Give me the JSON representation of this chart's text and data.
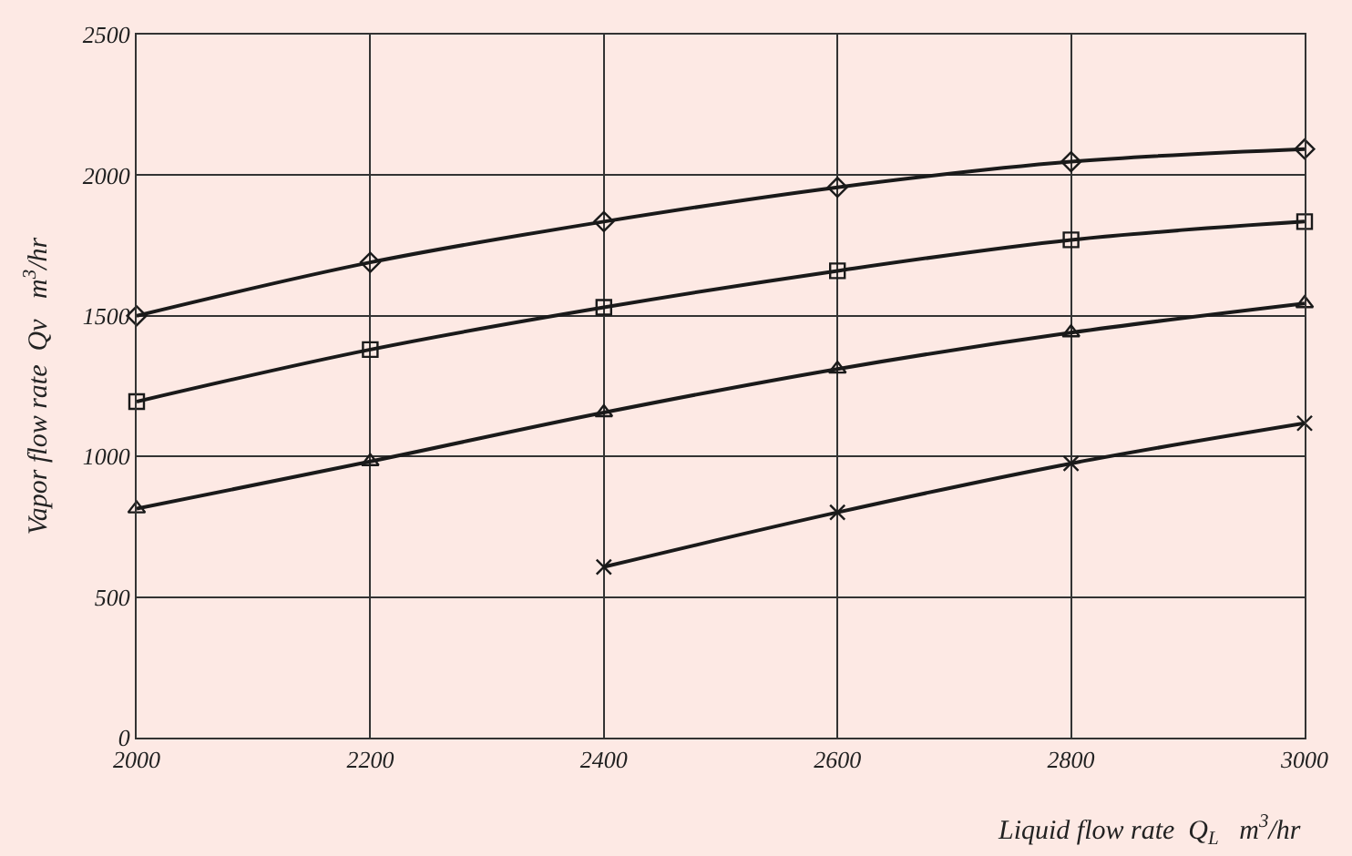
{
  "chart_data": {
    "type": "line",
    "xlabel": "Liquid flow rate  Q$_{L}$   m$^{3}$/hr",
    "ylabel": "Vapor flow rate  Qv   m$^{3}$/hr",
    "x": [
      2000,
      2200,
      2400,
      2600,
      2800,
      3000
    ],
    "series": [
      {
        "color": "#1a1a1a",
        "marker": "diamond",
        "values": [
          1500,
          1690,
          1835,
          1957,
          2048,
          2093
        ]
      },
      {
        "color": "#1a1a1a",
        "marker": "square",
        "values": [
          1195,
          1380,
          1530,
          1660,
          1770,
          1835
        ]
      },
      {
        "color": "#1a1a1a",
        "marker": "triangle",
        "values": [
          814,
          982,
          1156,
          1311,
          1440,
          1544
        ]
      },
      {
        "color": "#1a1a1a",
        "marker": "cross",
        "values": [
          null,
          null,
          607,
          801,
          975,
          1118
        ]
      }
    ],
    "xlim": [
      2000,
      3000
    ],
    "xticks": [
      2000,
      2200,
      2400,
      2600,
      2800,
      3000
    ],
    "ylim": [
      0,
      2500
    ],
    "yticks": [
      0,
      500,
      1000,
      1500,
      2000,
      2500
    ],
    "grid": true,
    "line_style": "solid"
  }
}
